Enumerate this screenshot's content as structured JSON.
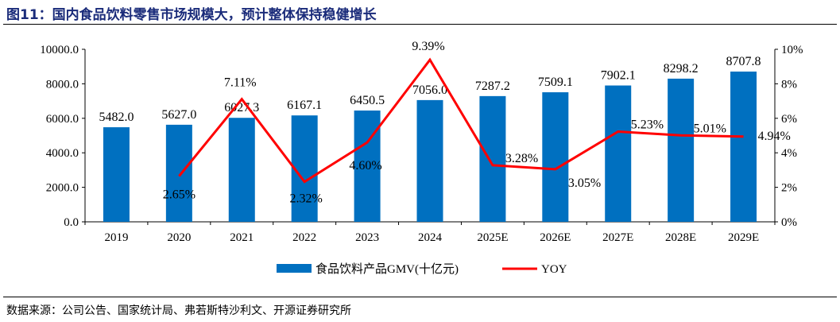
{
  "title": "图11：国内食品饮料零售市场规模大，预计整体保持稳健增长",
  "source": "数据来源：公司公告、国家统计局、弗若斯特沙利文、开源证券研究所",
  "chart_data": {
    "type": "bar+line",
    "categories": [
      "2019",
      "2020",
      "2021",
      "2022",
      "2023",
      "2024",
      "2025E",
      "2026E",
      "2027E",
      "2028E",
      "2029E"
    ],
    "series": [
      {
        "name": "食品饮料产品GMV(十亿元)",
        "type": "bar",
        "axis": "left",
        "color": "#0070c0",
        "values": [
          5482.0,
          5627.0,
          6027.3,
          6167.1,
          6450.5,
          7056.0,
          7287.2,
          7509.1,
          7902.1,
          8298.2,
          8707.8
        ],
        "labels": [
          "5482.0",
          "5627.0",
          "6027.3",
          "6167.1",
          "6450.5",
          "7056.0",
          "7287.2",
          "7509.1",
          "7902.1",
          "8298.2",
          "8707.8"
        ]
      },
      {
        "name": "YOY",
        "type": "line",
        "axis": "right",
        "color": "#ff0000",
        "values": [
          null,
          2.65,
          7.11,
          2.32,
          4.6,
          9.39,
          3.28,
          3.05,
          5.23,
          5.01,
          4.94
        ],
        "labels": [
          "",
          "2.65%",
          "7.11%",
          "2.32%",
          "4.60%",
          "9.39%",
          "3.28%",
          "3.05%",
          "5.23%",
          "5.01%",
          "4.94%"
        ]
      }
    ],
    "y_left": {
      "range": [
        0,
        10000
      ],
      "ticks": [
        "0.0",
        "2000.0",
        "4000.0",
        "6000.0",
        "8000.0",
        "10000.0"
      ]
    },
    "y_right": {
      "range": [
        0,
        10
      ],
      "ticks": [
        "0%",
        "2%",
        "4%",
        "6%",
        "8%",
        "10%"
      ]
    },
    "legend": "bottom",
    "grid": false
  }
}
